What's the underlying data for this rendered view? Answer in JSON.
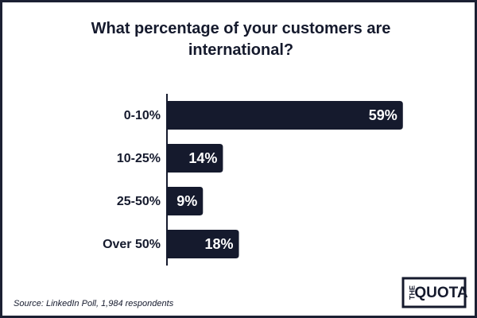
{
  "chart_data": {
    "type": "bar",
    "orientation": "horizontal",
    "title": "What percentage of your customers are international?",
    "categories": [
      "0-10%",
      "10-25%",
      "25-50%",
      "Over 50%"
    ],
    "values": [
      59,
      14,
      9,
      18
    ],
    "value_labels": [
      "59%",
      "14%",
      "9%",
      "18%"
    ],
    "color": "#151a2d",
    "source": "Source: LinkedIn Poll, 1,984 respondents",
    "logo": [
      "THE",
      "QUOTA"
    ]
  }
}
